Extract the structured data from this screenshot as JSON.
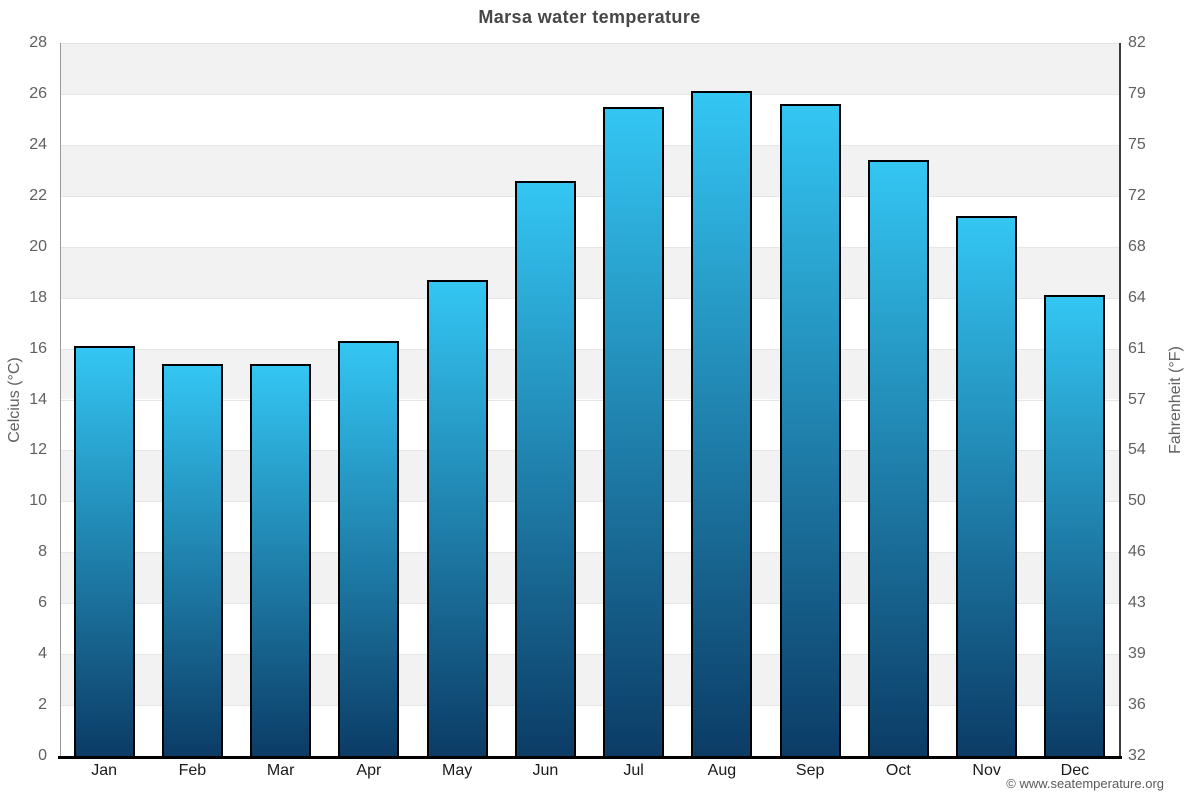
{
  "footer": "© www.seatemperature.org",
  "chart_data": {
    "type": "bar",
    "title": "Marsa water temperature",
    "categories": [
      "Jan",
      "Feb",
      "Mar",
      "Apr",
      "May",
      "Jun",
      "Jul",
      "Aug",
      "Sep",
      "Oct",
      "Nov",
      "Dec"
    ],
    "values": [
      16.1,
      15.4,
      15.4,
      16.3,
      18.7,
      22.6,
      25.5,
      26.1,
      25.6,
      23.4,
      21.2,
      18.1
    ],
    "unit": "°C",
    "ylabel_left": "Celcius (°C)",
    "ylabel_right": "Fahrenheit (°F)",
    "ylim": [
      0,
      28
    ],
    "y_ticks_celsius": [
      28,
      26,
      24,
      22,
      20,
      18,
      16,
      14,
      12,
      10,
      8,
      6,
      4,
      2,
      0
    ],
    "y_ticks_fahrenheit": [
      "82",
      "79",
      "75",
      "72",
      "68",
      "64",
      "61",
      "57",
      "54",
      "50",
      "46",
      "43",
      "39",
      "36",
      "32"
    ],
    "legend": "none",
    "grid": "alternating horizontal bands",
    "colors": {
      "bar_gradient_top": "#34c6f3",
      "bar_gradient_bottom": "#0b3c66",
      "bar_border": "#000000",
      "band_fill": "#f2f2f2",
      "gridline": "#e6e6e6",
      "left_axis_line": "#999999",
      "right_axis_line": "#3c3c3c",
      "baseline": "#000000",
      "title_text": "#474747",
      "tick_text": "#606060",
      "month_text": "#1a1a1a",
      "footer_text": "#5a5a5a"
    }
  }
}
